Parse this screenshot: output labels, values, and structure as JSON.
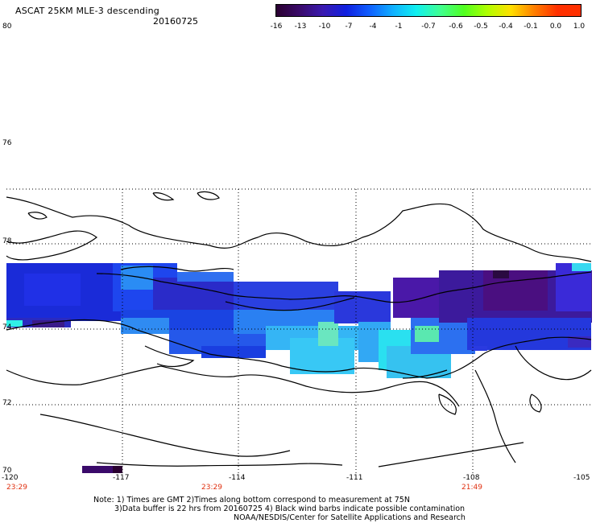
{
  "header": {
    "title": "ASCAT 25KM MLE-3 descending",
    "date": "20160725"
  },
  "colorbar": {
    "labels": [
      "-16",
      "-13",
      "-10",
      "-7",
      "-4",
      "-1",
      "-0.7",
      "-0.6",
      "-0.5",
      "-0.4",
      "-0.1",
      "0.0",
      "1.0"
    ],
    "colors": [
      "#2a0030",
      "#3a0a6a",
      "#3a1ab0",
      "#1020e0",
      "#1060ff",
      "#10b0ff",
      "#10f0f0",
      "#40ff90",
      "#50ff20",
      "#b0ff00",
      "#ffe000",
      "#ff8000",
      "#ff3000"
    ]
  },
  "axes": {
    "y_labels": [
      "80",
      "78",
      "76",
      "74",
      "72",
      "70"
    ],
    "x_labels": [
      "-120",
      "-117",
      "-114",
      "-111",
      "-108",
      "-105"
    ],
    "time_labels": [
      "23:29",
      "23:29",
      "21:49"
    ]
  },
  "notes": {
    "line1": "Note: 1) Times are GMT 2)Times along bottom correspond to measurement at 75N",
    "line2": "3)Data buffer is 22 hrs from 20160725 4) Black wind barbs indicate possible contamination",
    "line3": "NOAA/NESDIS/Center for Satellite Applications and Research"
  }
}
